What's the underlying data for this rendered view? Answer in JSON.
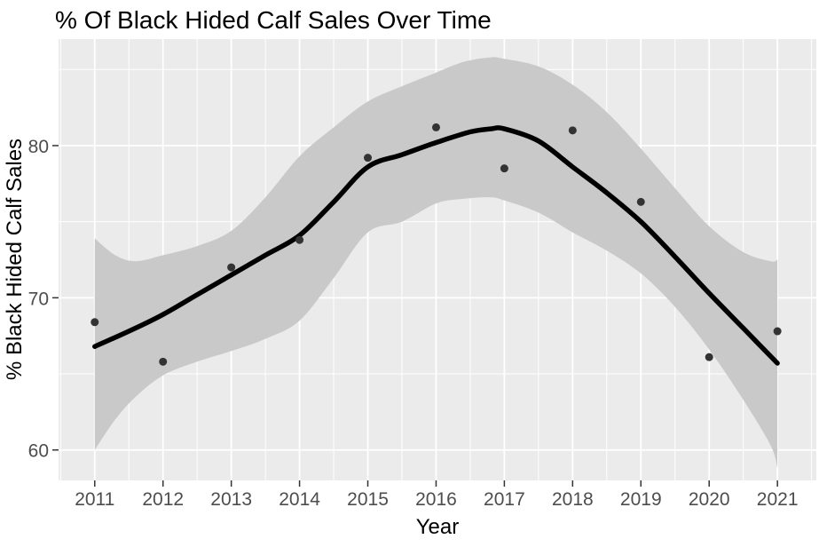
{
  "chart_data": {
    "type": "scatter",
    "title": "% Of Black Hided Calf Sales Over Time",
    "xlabel": "Year",
    "ylabel": "% Black Hided Calf Sales",
    "x": [
      2011,
      2012,
      2013,
      2014,
      2015,
      2016,
      2017,
      2018,
      2019,
      2020,
      2021
    ],
    "y_points": [
      68.4,
      65.8,
      72.0,
      73.8,
      79.2,
      81.2,
      78.5,
      81.0,
      76.3,
      66.1,
      67.8
    ],
    "smooth": {
      "x": [
        2011,
        2011.5,
        2012,
        2012.5,
        2013,
        2013.5,
        2014,
        2014.5,
        2015,
        2015.5,
        2016,
        2016.5,
        2016.8,
        2017,
        2017.5,
        2018,
        2018.5,
        2019,
        2019.5,
        2020,
        2020.5,
        2021
      ],
      "y": [
        66.8,
        67.8,
        68.9,
        70.2,
        71.5,
        72.8,
        74.1,
        76.3,
        78.6,
        79.4,
        80.2,
        80.9,
        81.1,
        81.1,
        80.3,
        78.6,
        76.9,
        75.0,
        72.7,
        70.3,
        68.0,
        65.7
      ]
    },
    "confidence_band": {
      "x": [
        2011,
        2011.3,
        2011.6,
        2012,
        2012.5,
        2013,
        2013.5,
        2014,
        2014.5,
        2015,
        2015.5,
        2016,
        2016.4,
        2016.8,
        2017,
        2017.5,
        2018,
        2018.5,
        2019,
        2019.5,
        2020,
        2020.5,
        2020.9,
        2021
      ],
      "upper": [
        73.9,
        72.8,
        72.4,
        72.8,
        73.4,
        74.4,
        76.6,
        79.3,
        81.2,
        82.9,
        83.9,
        84.8,
        85.5,
        85.8,
        85.7,
        85.2,
        84.0,
        82.2,
        79.8,
        77.2,
        74.7,
        73.0,
        72.4,
        72.5
      ],
      "lower": [
        60.0,
        62.0,
        63.5,
        64.9,
        65.8,
        66.5,
        67.3,
        68.5,
        71.3,
        74.3,
        75.0,
        76.2,
        76.5,
        76.6,
        76.4,
        75.6,
        74.3,
        73.1,
        71.6,
        69.4,
        66.6,
        63.3,
        60.3,
        58.8
      ]
    },
    "xlim": [
      2010.47,
      2021.57
    ],
    "ylim": [
      58.0,
      87.0
    ],
    "xticks": [
      2011,
      2012,
      2013,
      2014,
      2015,
      2016,
      2017,
      2018,
      2019,
      2020,
      2021
    ],
    "xtick_labels": [
      "2011",
      "2012",
      "2013",
      "2014",
      "2015",
      "2016",
      "2017",
      "2018",
      "2019",
      "2020",
      "2021"
    ],
    "xticks_minor": [
      2010.5,
      2011.5,
      2012.5,
      2013.5,
      2014.5,
      2015.5,
      2016.5,
      2017.5,
      2018.5,
      2019.5,
      2020.5,
      2021.5
    ],
    "yticks": [
      60,
      70,
      80
    ],
    "ytick_labels": [
      "60",
      "70",
      "80"
    ],
    "yticks_minor": [
      65,
      75,
      85
    ],
    "grid": true,
    "legend": "none",
    "colors": {
      "background": "#FFFFFF",
      "panel_background": "#EBEBEB",
      "gridline": "#FFFFFF",
      "confidence_band": "#C9C9C9",
      "trend_line": "#000000",
      "point": "#333333",
      "tick_mark": "#333333",
      "tick_label": "#4D4D4D",
      "title": "#000000",
      "axis_title": "#000000"
    }
  }
}
